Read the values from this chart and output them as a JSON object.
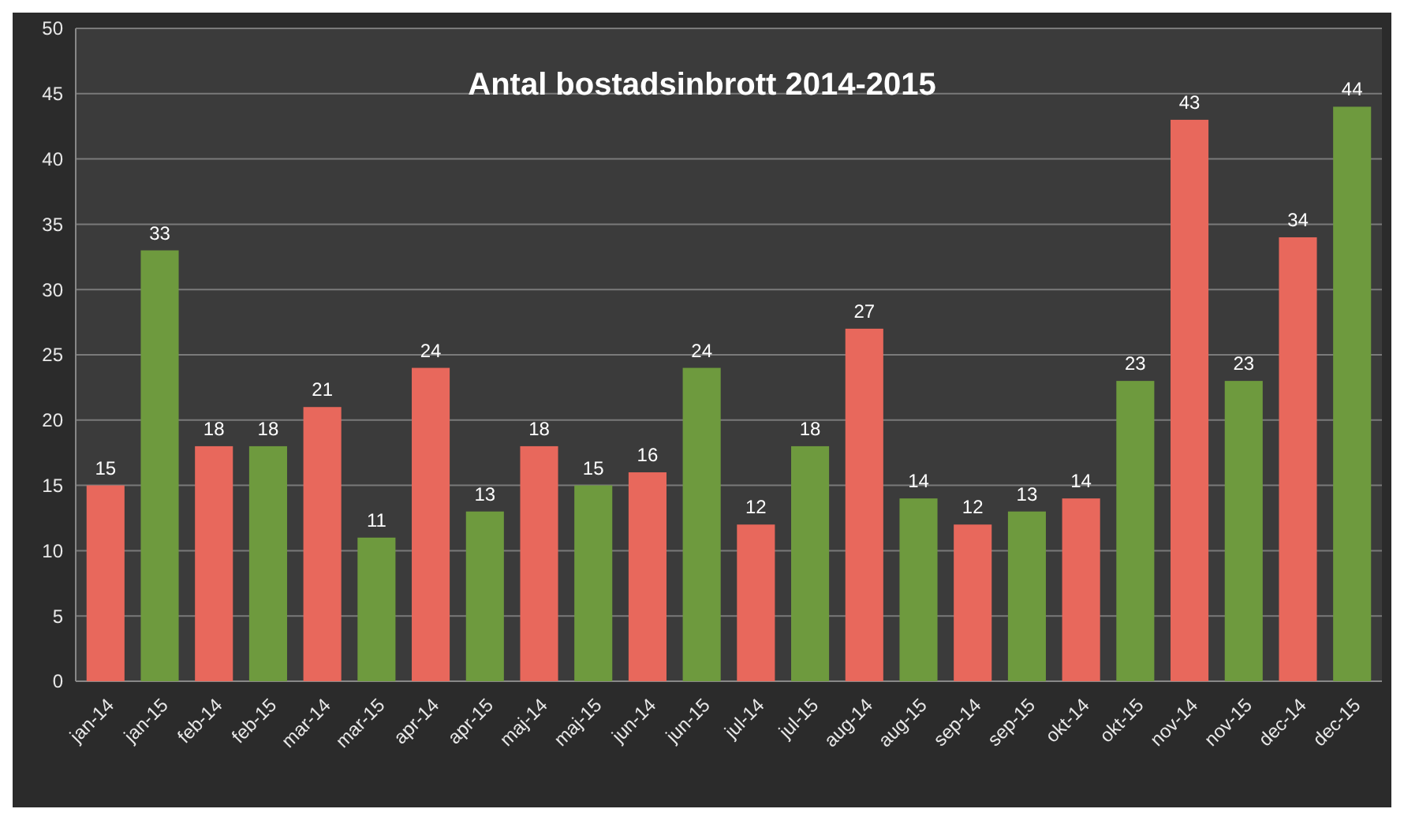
{
  "chart_data": {
    "type": "bar",
    "title": "Antal bostadsinbrott 2014-2015",
    "categories": [
      "jan-14",
      "jan-15",
      "feb-14",
      "feb-15",
      "mar-14",
      "mar-15",
      "apr-14",
      "apr-15",
      "maj-14",
      "maj-15",
      "jun-14",
      "jun-15",
      "jul-14",
      "jul-15",
      "aug-14",
      "aug-15",
      "sep-14",
      "sep-15",
      "okt-14",
      "okt-15",
      "nov-14",
      "nov-15",
      "dec-14",
      "dec-15"
    ],
    "values": [
      15,
      33,
      18,
      18,
      21,
      11,
      24,
      13,
      18,
      15,
      16,
      24,
      12,
      18,
      27,
      14,
      12,
      13,
      14,
      23,
      43,
      23,
      34,
      44
    ],
    "colors": [
      "#e8685c",
      "#6e9a3e",
      "#e8685c",
      "#6e9a3e",
      "#e8685c",
      "#6e9a3e",
      "#e8685c",
      "#6e9a3e",
      "#e8685c",
      "#6e9a3e",
      "#e8685c",
      "#6e9a3e",
      "#e8685c",
      "#6e9a3e",
      "#e8685c",
      "#6e9a3e",
      "#e8685c",
      "#6e9a3e",
      "#e8685c",
      "#6e9a3e",
      "#e8685c",
      "#6e9a3e",
      "#e8685c",
      "#6e9a3e"
    ],
    "ylim": [
      0,
      50
    ],
    "yticks": [
      0,
      5,
      10,
      15,
      20,
      25,
      30,
      35,
      40,
      45,
      50
    ],
    "grid": "y",
    "data_labels": true
  }
}
